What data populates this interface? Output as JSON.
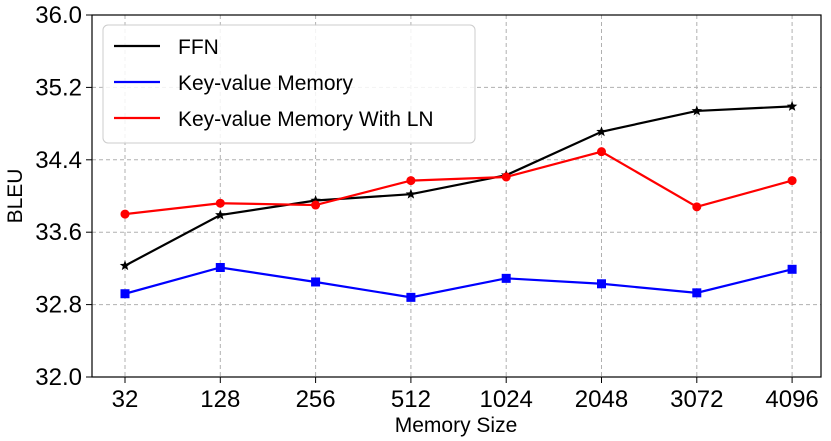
{
  "chart_data": {
    "type": "line",
    "categories": [
      "32",
      "128",
      "256",
      "512",
      "1024",
      "2048",
      "3072",
      "4096"
    ],
    "series": [
      {
        "name": "FFN",
        "color": "#000000",
        "marker": "star",
        "values": [
          33.23,
          33.79,
          33.95,
          34.02,
          34.23,
          34.71,
          34.94,
          34.99
        ]
      },
      {
        "name": "Key-value Memory",
        "color": "#0000ff",
        "marker": "square",
        "values": [
          32.92,
          33.21,
          33.05,
          32.88,
          33.09,
          33.03,
          32.93,
          33.19
        ]
      },
      {
        "name": "Key-value Memory With LN",
        "color": "#ff0000",
        "marker": "circle",
        "values": [
          33.8,
          33.92,
          33.9,
          34.17,
          34.21,
          34.49,
          33.88,
          34.17
        ]
      }
    ],
    "title": "",
    "xlabel": "Memory Size",
    "ylabel": "BLEU",
    "ylim": [
      32.0,
      36.0
    ],
    "yticks": [
      "32.0",
      "32.8",
      "33.6",
      "34.4",
      "35.2",
      "36.0"
    ],
    "grid": true,
    "legend_position": "upper-left"
  }
}
